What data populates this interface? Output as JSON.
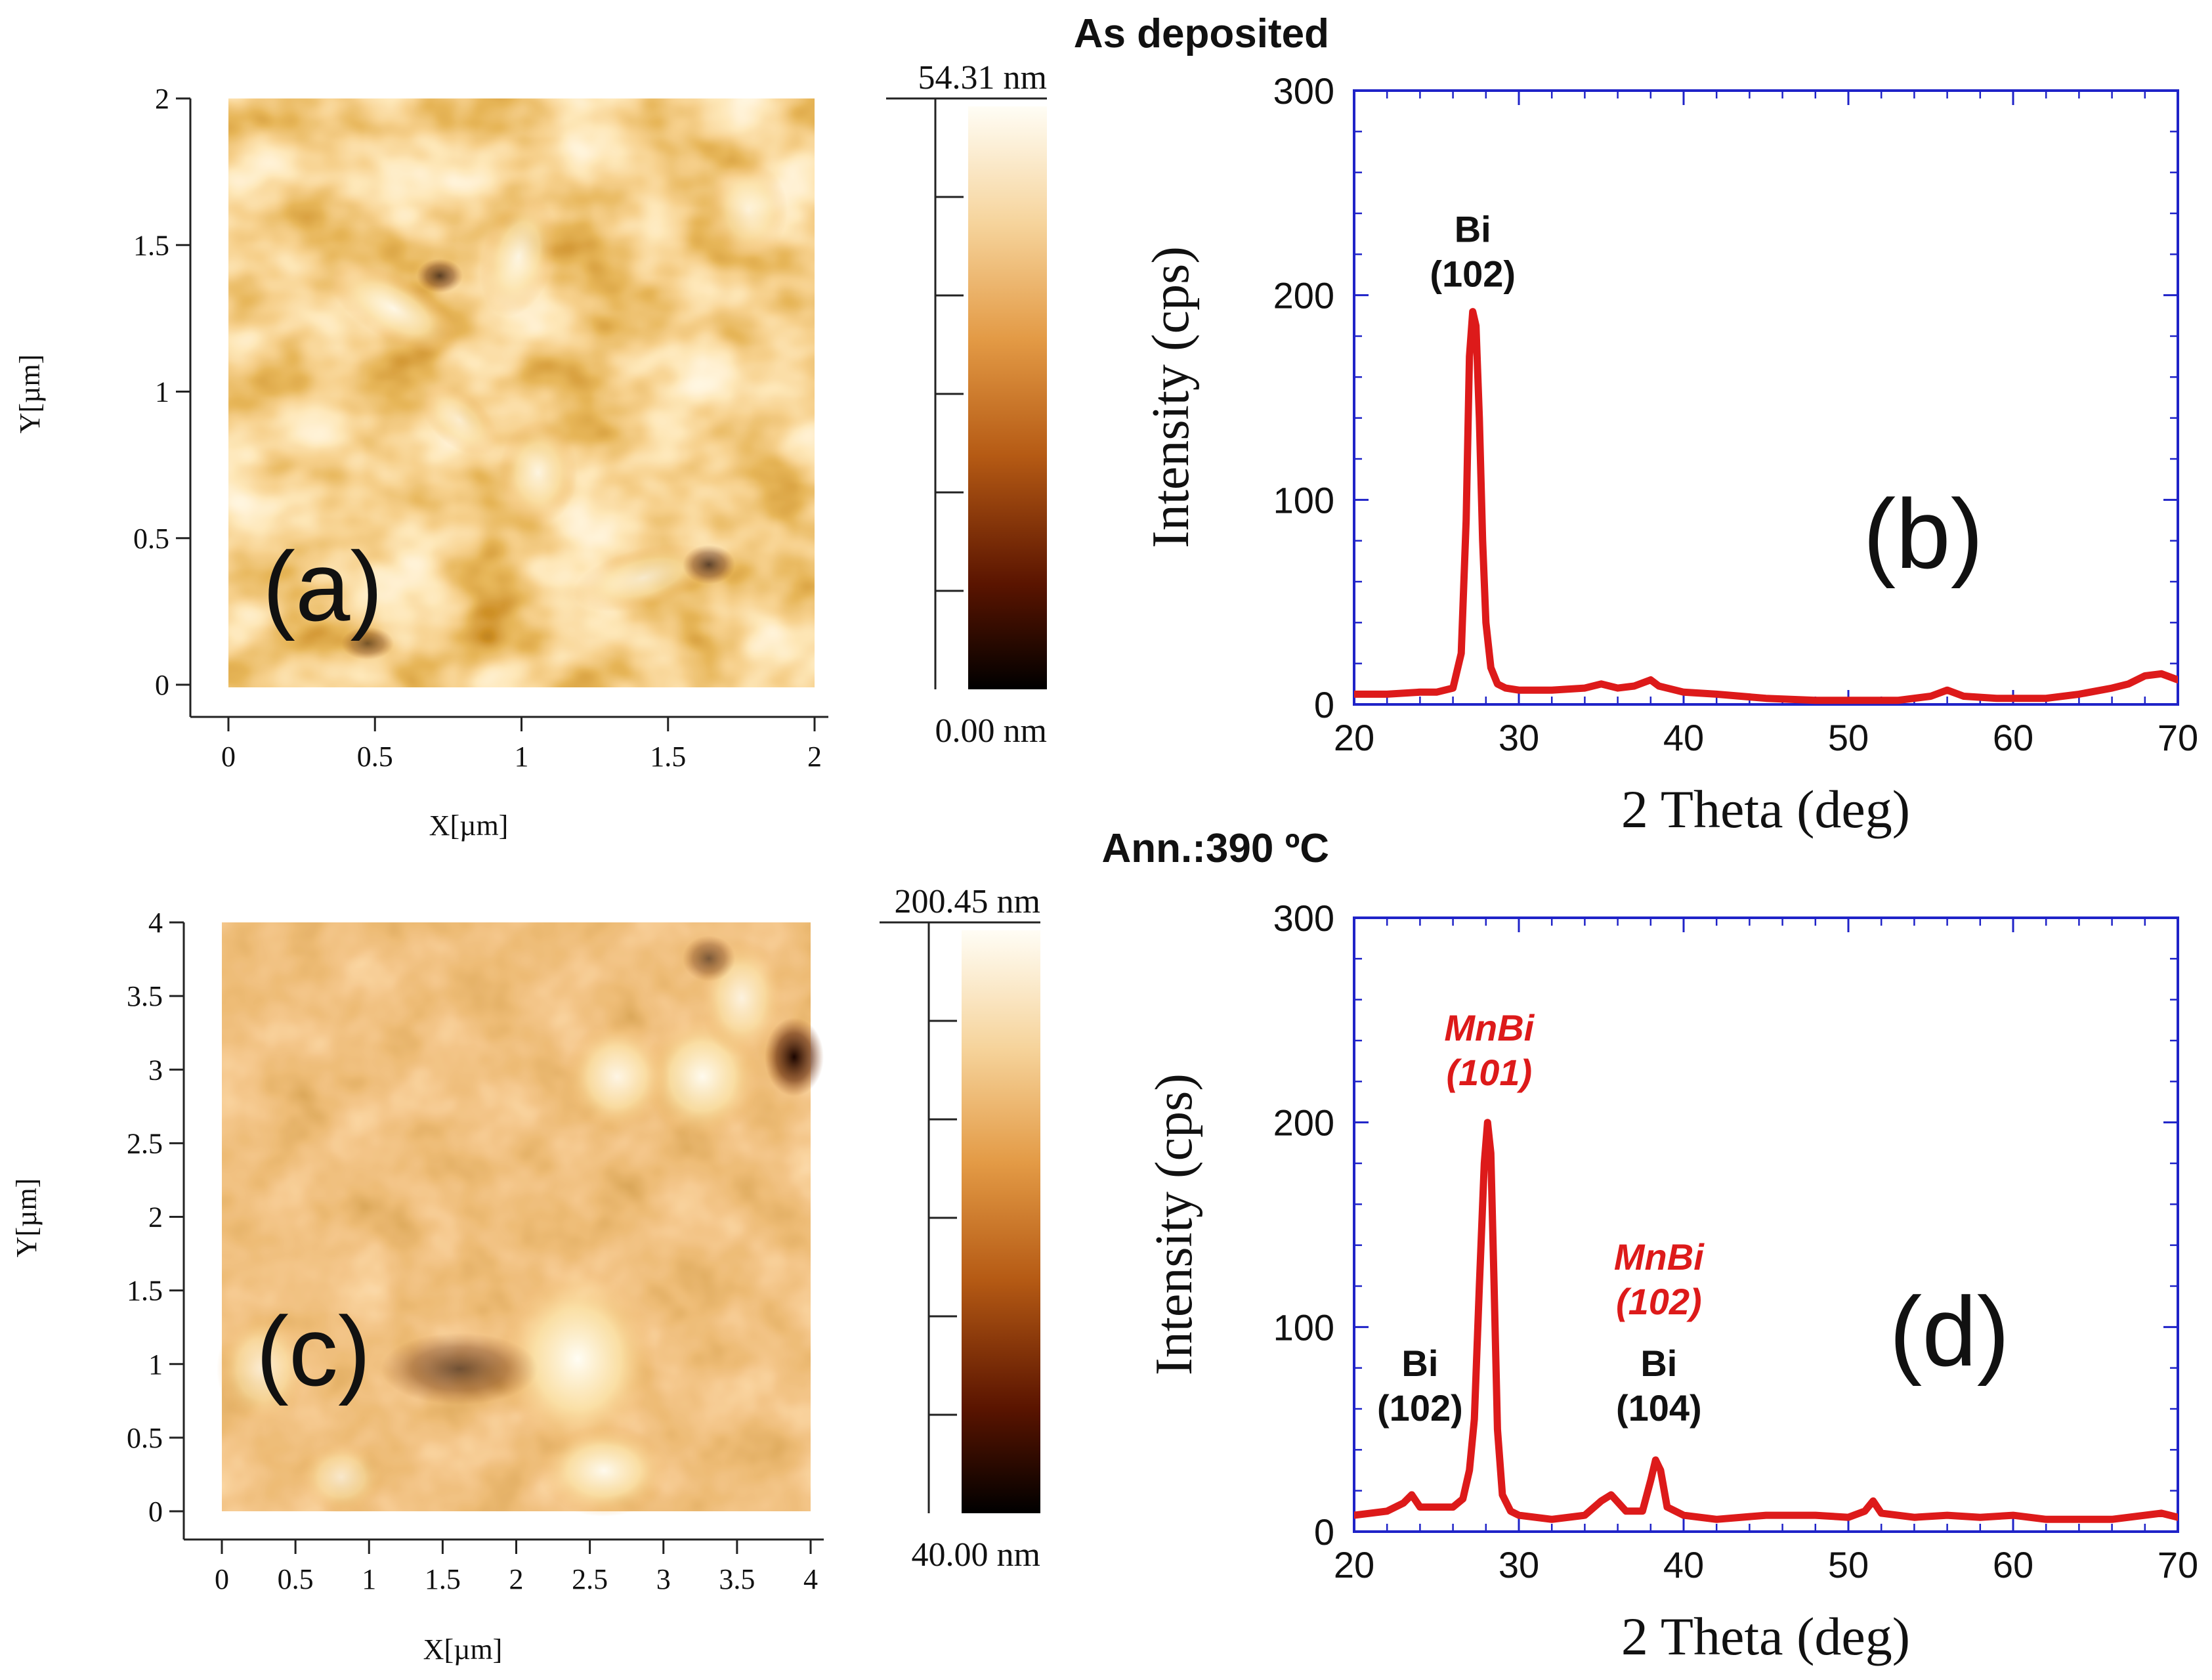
{
  "figure": {
    "top_title": "As deposited",
    "bottom_title": "Ann.:390 ºC"
  },
  "afm": [
    {
      "panel_label": "(a)",
      "x_label": "X[µm]",
      "y_label": "Y[µm]",
      "range_um": [
        0,
        2
      ],
      "x_ticks": [
        "0",
        "0.5",
        "1",
        "1.5",
        "2"
      ],
      "y_ticks": [
        "0",
        "0.5",
        "1",
        "1.5",
        "2"
      ],
      "colorbar": {
        "max_label": "54.31 nm",
        "min_label": "0.00 nm",
        "min_nm": 0.0,
        "max_nm": 54.31
      }
    },
    {
      "panel_label": "(c)",
      "x_label": "X[µm]",
      "y_label": "Y[µm]",
      "range_um": [
        0,
        4
      ],
      "x_ticks": [
        "0",
        "0.5",
        "1",
        "1.5",
        "2",
        "2.5",
        "3",
        "3.5",
        "4"
      ],
      "y_ticks": [
        "0",
        "0.5",
        "1",
        "1.5",
        "2",
        "2.5",
        "3",
        "3.5",
        "4"
      ],
      "colorbar": {
        "max_label": "200.45 nm",
        "min_label": "40.00 nm",
        "min_nm": 40.0,
        "max_nm": 200.45
      }
    }
  ],
  "chart_data": [
    {
      "type": "line",
      "panel_label": "(b)",
      "title": "",
      "xlabel": "2 Theta (deg)",
      "ylabel": "Intensity (cps)",
      "xlim": [
        20,
        70
      ],
      "ylim": [
        0,
        300
      ],
      "x_ticks": [
        20,
        30,
        40,
        50,
        60,
        70
      ],
      "y_ticks": [
        0,
        100,
        200,
        300
      ],
      "line_color": "#dd1a1a",
      "series": [
        {
          "name": "As deposited",
          "x": [
            20,
            22,
            24,
            25,
            26,
            26.5,
            26.8,
            27.0,
            27.2,
            27.4,
            27.6,
            27.8,
            28.0,
            28.3,
            28.7,
            29.2,
            30,
            32,
            34,
            35,
            36,
            37,
            38,
            38.5,
            40,
            42,
            45,
            48,
            50,
            53,
            55,
            56,
            57,
            59,
            62,
            64,
            66,
            67,
            68,
            69,
            70
          ],
          "y": [
            5,
            5,
            6,
            6,
            8,
            25,
            90,
            170,
            192,
            185,
            140,
            80,
            40,
            18,
            10,
            8,
            7,
            7,
            8,
            10,
            8,
            9,
            12,
            9,
            6,
            5,
            3,
            2,
            2,
            2,
            4,
            7,
            4,
            3,
            3,
            5,
            8,
            10,
            14,
            15,
            12
          ]
        }
      ],
      "annotations": [
        {
          "text_lines": [
            "Bi",
            "(102)"
          ],
          "x": 27.2,
          "y": 226,
          "color": "#111111",
          "italic": false
        }
      ]
    },
    {
      "type": "line",
      "panel_label": "(d)",
      "title": "",
      "xlabel": "2 Theta (deg)",
      "ylabel": "Intensity (cps)",
      "xlim": [
        20,
        70
      ],
      "ylim": [
        0,
        300
      ],
      "x_ticks": [
        20,
        30,
        40,
        50,
        60,
        70
      ],
      "y_ticks": [
        0,
        100,
        200,
        300
      ],
      "line_color": "#dd1a1a",
      "series": [
        {
          "name": "Ann.:390 ºC",
          "x": [
            20,
            21,
            22,
            23,
            23.5,
            24,
            25,
            26,
            26.6,
            27,
            27.3,
            27.6,
            27.9,
            28.1,
            28.3,
            28.5,
            28.7,
            29,
            29.5,
            30,
            32,
            34,
            35,
            35.6,
            36.5,
            37.5,
            38.0,
            38.3,
            38.6,
            39,
            40,
            42,
            45,
            48,
            50,
            51,
            51.5,
            52,
            54,
            56,
            58,
            60,
            62,
            64,
            66,
            68,
            69,
            70
          ],
          "y": [
            8,
            9,
            10,
            14,
            18,
            12,
            12,
            12,
            16,
            30,
            55,
            120,
            180,
            200,
            185,
            120,
            50,
            18,
            10,
            8,
            6,
            8,
            15,
            18,
            10,
            10,
            25,
            35,
            30,
            12,
            8,
            6,
            8,
            8,
            7,
            10,
            15,
            9,
            7,
            8,
            7,
            8,
            6,
            6,
            6,
            8,
            9,
            7
          ]
        }
      ],
      "annotations": [
        {
          "text_lines": [
            "MnBi",
            "(101)"
          ],
          "x": 28.2,
          "y": 240,
          "color": "#dd1a1a",
          "italic": true
        },
        {
          "text_lines": [
            "MnBi",
            "(102)"
          ],
          "x": 38.5,
          "y": 128,
          "color": "#dd1a1a",
          "italic": true
        },
        {
          "text_lines": [
            "Bi",
            "(104)"
          ],
          "x": 38.5,
          "y": 76,
          "color": "#111111",
          "italic": false
        },
        {
          "text_lines": [
            "Bi",
            "(102)"
          ],
          "x": 24.0,
          "y": 76,
          "color": "#111111",
          "italic": false
        }
      ]
    }
  ]
}
